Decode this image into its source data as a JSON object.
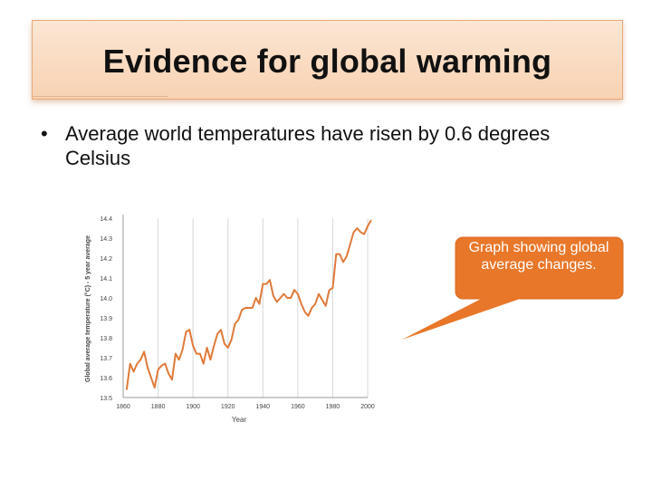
{
  "slide": {
    "title": "Evidence for global warming",
    "bullet": "Average world temperatures have risen by 0.6 degrees Celsius",
    "callout": "Graph showing global average changes."
  },
  "colors": {
    "line": "#e07a3a",
    "title_bg": "#f8d8bd",
    "callout_bg": "#e8772a"
  },
  "chart_data": {
    "type": "line",
    "xlabel": "Year",
    "ylabel": "Global average temperature (°C) - 5 year average",
    "xlim": [
      1860,
      2000
    ],
    "ylim": [
      13.5,
      14.4
    ],
    "x_ticks": [
      1860,
      1880,
      1900,
      1920,
      1940,
      1960,
      1980,
      2000
    ],
    "y_ticks": [
      "13.5",
      "13.6",
      "13.7",
      "13.8",
      "13.9",
      "14.0",
      "14.1",
      "14.2",
      "14.3",
      "14.4"
    ],
    "grid": "vertical",
    "x": [
      1860,
      1862,
      1864,
      1866,
      1868,
      1870,
      1872,
      1874,
      1876,
      1878,
      1880,
      1882,
      1884,
      1886,
      1888,
      1890,
      1892,
      1894,
      1896,
      1898,
      1900,
      1902,
      1904,
      1906,
      1908,
      1910,
      1912,
      1914,
      1916,
      1918,
      1920,
      1922,
      1924,
      1926,
      1928,
      1930,
      1932,
      1934,
      1936,
      1938,
      1940,
      1942,
      1944,
      1946,
      1948,
      1950,
      1952,
      1954,
      1956,
      1958,
      1960,
      1962,
      1964,
      1966,
      1968,
      1970,
      1972,
      1974,
      1976,
      1978,
      1980,
      1982,
      1984,
      1986,
      1988,
      1990,
      1992,
      1994,
      1996,
      1998,
      2000
    ],
    "y": [
      13.54,
      13.67,
      13.63,
      13.67,
      13.69,
      13.73,
      13.65,
      13.6,
      13.55,
      13.64,
      13.66,
      13.67,
      13.62,
      13.59,
      13.72,
      13.69,
      13.74,
      13.83,
      13.84,
      13.76,
      13.72,
      13.72,
      13.67,
      13.75,
      13.69,
      13.76,
      13.82,
      13.84,
      13.77,
      13.75,
      13.79,
      13.87,
      13.89,
      13.94,
      13.95,
      13.95,
      13.95,
      14.0,
      13.97,
      14.07,
      14.07,
      14.09,
      14.01,
      13.98,
      14.0,
      14.02,
      14.0,
      14.0,
      14.04,
      14.02,
      13.97,
      13.93,
      13.91,
      13.95,
      13.97,
      14.02,
      13.99,
      13.96,
      14.04,
      14.05,
      14.22,
      14.22,
      14.18,
      14.21,
      14.27,
      14.33,
      14.35,
      14.33,
      14.32,
      14.36,
      14.39
    ]
  }
}
